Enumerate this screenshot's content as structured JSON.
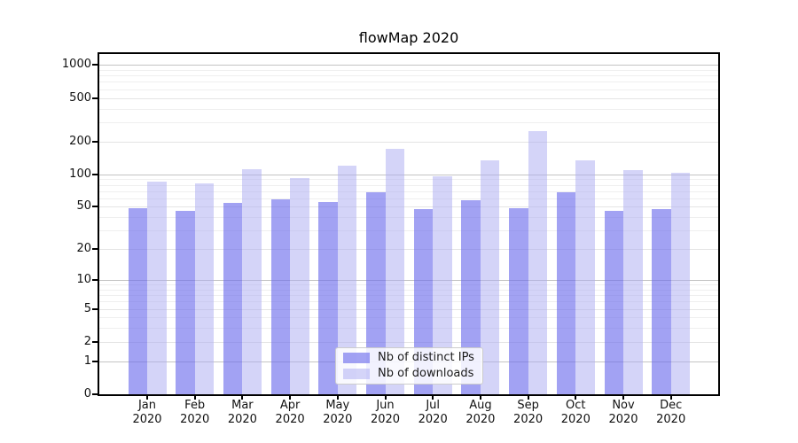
{
  "chart_data": {
    "type": "bar",
    "title": "flowMap 2020",
    "categories": [
      "Jan 2020",
      "Feb 2020",
      "Mar 2020",
      "Apr 2020",
      "May 2020",
      "Jun 2020",
      "Jul 2020",
      "Aug 2020",
      "Sep 2020",
      "Oct 2020",
      "Nov 2020",
      "Dec 2020"
    ],
    "series": [
      {
        "name": "Nb of distinct IPs",
        "color": "rgba(105,105,235,0.62)",
        "values": [
          49,
          46,
          54,
          59,
          55,
          68,
          48,
          58,
          49,
          68,
          46,
          48
        ]
      },
      {
        "name": "Nb of downloads",
        "color": "rgba(170,170,242,0.5)",
        "values": [
          85,
          83,
          111,
          93,
          120,
          170,
          96,
          134,
          250,
          134,
          110,
          104
        ]
      }
    ],
    "xlabel": "",
    "ylabel": "",
    "y_scale": "log10(value+1)",
    "ylim": [
      0,
      1000
    ],
    "y_ticks": [
      0,
      1,
      2,
      5,
      10,
      20,
      50,
      100,
      200,
      500,
      1000
    ],
    "grid": {
      "major_lines": [
        1,
        10,
        100,
        1000
      ],
      "mid_lines": [
        2,
        5,
        20,
        50,
        200,
        500
      ],
      "minor_lines": [
        3,
        4,
        6,
        7,
        8,
        9,
        30,
        40,
        60,
        70,
        80,
        90,
        300,
        400,
        600,
        700,
        800,
        900
      ],
      "major_color": "#c4c4c4",
      "mid_color": "#e4e4e4",
      "minor_color": "#efefef"
    },
    "legend_position": "lower center"
  }
}
